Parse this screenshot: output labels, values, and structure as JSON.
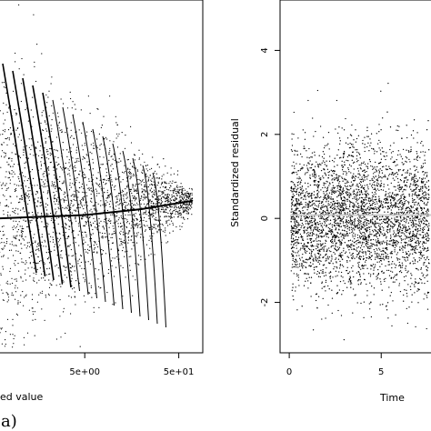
{
  "figure": {
    "caption": "(a)"
  },
  "chart_data": [
    {
      "type": "scatter",
      "title": "",
      "xlabel": "ed value",
      "ylabel": "",
      "x_scale": "log",
      "x_ticks": [
        {
          "value": 5,
          "label": "5e+00"
        },
        {
          "value": 50,
          "label": "5e+01"
        }
      ],
      "y_ticks": [],
      "xlim": [
        0.6,
        90
      ],
      "ylim": [
        -3.2,
        5.2
      ],
      "grid": false,
      "series": [
        {
          "values_description_free": true,
          "marker": "dot",
          "color": "#000000"
        }
      ],
      "fitted_line": {
        "points": [
          [
            0.6,
            0.0
          ],
          [
            5,
            0.08
          ],
          [
            20,
            0.22
          ],
          [
            70,
            0.42
          ]
        ],
        "color": "#000000"
      },
      "streak_count": 16
    },
    {
      "type": "scatter",
      "title": "",
      "xlabel": "Time",
      "ylabel": "Standardized residual",
      "x_ticks": [
        {
          "value": 0,
          "label": "0"
        },
        {
          "value": 5,
          "label": "5"
        }
      ],
      "y_ticks": [
        {
          "value": -2,
          "label": "-2"
        },
        {
          "value": 0,
          "label": "0"
        },
        {
          "value": 2,
          "label": "2"
        },
        {
          "value": 4,
          "label": "4"
        }
      ],
      "xlim": [
        -0.5,
        8.4
      ],
      "ylim": [
        -3.2,
        5.2
      ],
      "grid": false,
      "series": [
        {
          "marker": "dot",
          "color": "#000000"
        }
      ],
      "reference_line": {
        "y": 0.08,
        "color": "#cccccc"
      }
    }
  ]
}
